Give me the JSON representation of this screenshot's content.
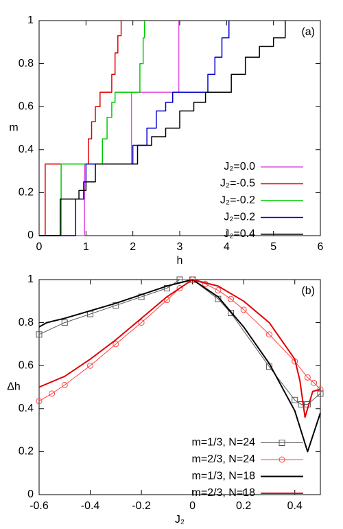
{
  "chart_data": [
    {
      "type": "line",
      "annotation": "(a)",
      "xlabel": "h",
      "ylabel": "m",
      "xlim": [
        0,
        6
      ],
      "xticks": [
        0,
        1,
        2,
        3,
        4,
        5,
        6
      ],
      "ylim": [
        0,
        1
      ],
      "yticks": [
        0,
        0.2,
        0.4,
        0.6,
        0.8,
        1
      ],
      "legend": "lower right",
      "series": [
        {
          "name": "J₂=0.0",
          "color": "#e050e0",
          "linewidth": 1.5,
          "x": [
            0,
            0.97,
            0.97,
            1.97,
            1.97,
            2.98,
            2.98
          ],
          "values": [
            0,
            0,
            0.333,
            0.333,
            0.667,
            0.667,
            1
          ]
        },
        {
          "name": "J₂=-0.5",
          "color": "#e00000",
          "linewidth": 1.5,
          "x": [
            0,
            0.13,
            0.13,
            1.05,
            1.05,
            1.12,
            1.12,
            1.2,
            1.2,
            1.3,
            1.3,
            1.55,
            1.55,
            1.62,
            1.62,
            1.68,
            1.68,
            1.75,
            1.75
          ],
          "values": [
            0,
            0,
            0.333,
            0.333,
            0.45,
            0.45,
            0.53,
            0.53,
            0.6,
            0.6,
            0.667,
            0.667,
            0.75,
            0.75,
            0.85,
            0.85,
            0.93,
            0.93,
            1
          ]
        },
        {
          "name": "J₂=-0.2",
          "color": "#00cc00",
          "linewidth": 1.5,
          "x": [
            0,
            0.47,
            0.47,
            1.35,
            1.35,
            1.45,
            1.45,
            1.55,
            1.55,
            1.62,
            1.62,
            2.15,
            2.15,
            2.22,
            2.22,
            2.25,
            2.25
          ],
          "values": [
            0,
            0,
            0.333,
            0.333,
            0.45,
            0.45,
            0.55,
            0.55,
            0.62,
            0.62,
            0.667,
            0.667,
            0.8,
            0.8,
            0.92,
            0.92,
            1
          ]
        },
        {
          "name": "J₂=0.2",
          "color": "#0000cc",
          "linewidth": 1.5,
          "x": [
            0,
            0.78,
            0.78,
            0.95,
            0.95,
            1.0,
            1.0,
            2.0,
            2.0,
            2.3,
            2.3,
            2.5,
            2.5,
            2.7,
            2.7,
            2.85,
            2.85,
            3.6,
            3.6,
            3.75,
            3.75,
            3.9,
            3.9,
            4.05,
            4.05
          ],
          "values": [
            0,
            0,
            0.17,
            0.17,
            0.25,
            0.25,
            0.333,
            0.333,
            0.42,
            0.42,
            0.5,
            0.5,
            0.58,
            0.58,
            0.62,
            0.62,
            0.667,
            0.667,
            0.75,
            0.75,
            0.83,
            0.83,
            0.92,
            0.92,
            1
          ]
        },
        {
          "name": "J₂=0.4",
          "color": "#000000",
          "linewidth": 1.5,
          "x": [
            0,
            0.45,
            0.45,
            0.85,
            0.85,
            1.0,
            1.0,
            1.2,
            1.2,
            2.1,
            2.1,
            2.4,
            2.4,
            2.7,
            2.7,
            3.0,
            3.0,
            3.3,
            3.3,
            3.55,
            3.55,
            4.1,
            4.1,
            4.4,
            4.4,
            4.7,
            4.7,
            5.0,
            5.0,
            5.25,
            5.25
          ],
          "values": [
            0,
            0,
            0.17,
            0.17,
            0.21,
            0.21,
            0.25,
            0.25,
            0.333,
            0.333,
            0.42,
            0.42,
            0.46,
            0.46,
            0.5,
            0.5,
            0.58,
            0.58,
            0.62,
            0.62,
            0.667,
            0.667,
            0.75,
            0.75,
            0.83,
            0.83,
            0.88,
            0.88,
            0.92,
            0.92,
            1
          ]
        }
      ]
    },
    {
      "type": "line",
      "annotation": "(b)",
      "xlabel": "J₂",
      "ylabel": "Δh",
      "xlim": [
        -0.6,
        0.5
      ],
      "xticks": [
        -0.6,
        -0.4,
        -0.2,
        0,
        0.2,
        0.4
      ],
      "ylim": [
        0,
        1
      ],
      "yticks": [
        0,
        0.2,
        0.4,
        0.6,
        0.8,
        1
      ],
      "legend": "lower left",
      "series": [
        {
          "name": "m=1/3, N=24",
          "color": "#555555",
          "linewidth": 1,
          "marker": "square",
          "x": [
            -0.6,
            -0.5,
            -0.4,
            -0.3,
            -0.2,
            -0.1,
            -0.05,
            0,
            0.1,
            0.15,
            0.3,
            0.4,
            0.425,
            0.45,
            0.5
          ],
          "values": [
            0.745,
            0.8,
            0.84,
            0.88,
            0.92,
            0.96,
            1.0,
            1.0,
            0.91,
            0.845,
            0.595,
            0.44,
            0.42,
            0.42,
            0.47
          ]
        },
        {
          "name": "m=2/3, N=24",
          "color": "#ff4040",
          "linewidth": 1,
          "marker": "circle",
          "x": [
            -0.6,
            -0.55,
            -0.5,
            -0.4,
            -0.3,
            -0.2,
            -0.1,
            -0.05,
            0,
            0.05,
            0.1,
            0.15,
            0.2,
            0.3,
            0.4,
            0.45,
            0.475,
            0.5
          ],
          "values": [
            0.435,
            0.47,
            0.51,
            0.6,
            0.7,
            0.8,
            0.905,
            0.96,
            1.0,
            0.98,
            0.95,
            0.91,
            0.86,
            0.745,
            0.62,
            0.545,
            0.52,
            0.49
          ]
        },
        {
          "name": "m=1/3, N=18",
          "color": "#000000",
          "linewidth": 2,
          "x": [
            -0.6,
            -0.57,
            -0.5,
            -0.3,
            -0.1,
            0,
            0.1,
            0.2,
            0.3,
            0.4,
            0.45,
            0.5
          ],
          "values": [
            0.78,
            0.8,
            0.82,
            0.89,
            0.97,
            1.0,
            0.92,
            0.78,
            0.61,
            0.39,
            0.2,
            0.38
          ]
        },
        {
          "name": "m=2/3, N=18",
          "color": "#e00000",
          "linewidth": 2,
          "x": [
            -0.6,
            -0.5,
            -0.4,
            -0.3,
            -0.2,
            -0.1,
            0,
            0.1,
            0.2,
            0.3,
            0.4,
            0.42,
            0.44,
            0.47,
            0.5
          ],
          "values": [
            0.5,
            0.55,
            0.63,
            0.72,
            0.82,
            0.92,
            1.0,
            0.97,
            0.9,
            0.8,
            0.63,
            0.53,
            0.36,
            0.48,
            0.49
          ]
        }
      ]
    }
  ]
}
